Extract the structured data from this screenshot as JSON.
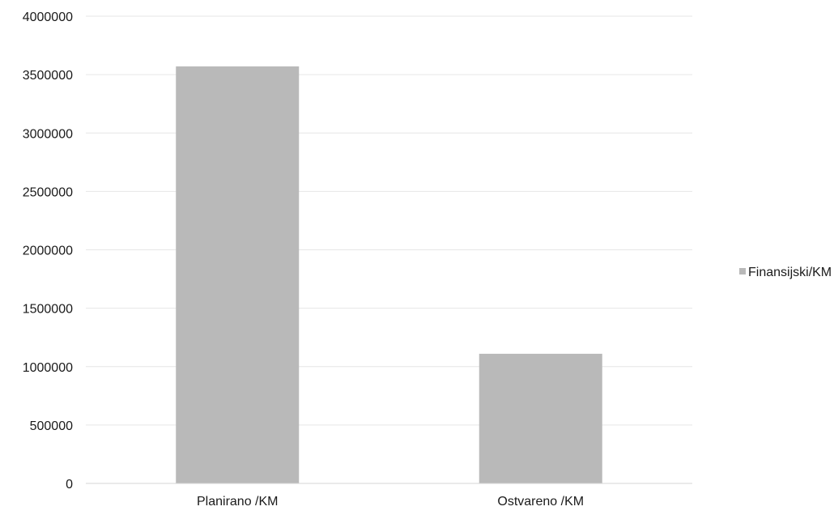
{
  "chart_data": {
    "type": "bar",
    "categories": [
      "Planirano /KM",
      "Ostvareno /KM"
    ],
    "series": [
      {
        "name": "Finansijski/KM",
        "values": [
          3570000,
          1110000
        ]
      }
    ],
    "ylim": [
      0,
      4000000
    ],
    "yticks": [
      0,
      500000,
      1000000,
      1500000,
      2000000,
      2500000,
      3000000,
      3500000,
      4000000
    ],
    "grid": true,
    "legend_position": "right",
    "bar_color": "#b9b9b9"
  }
}
